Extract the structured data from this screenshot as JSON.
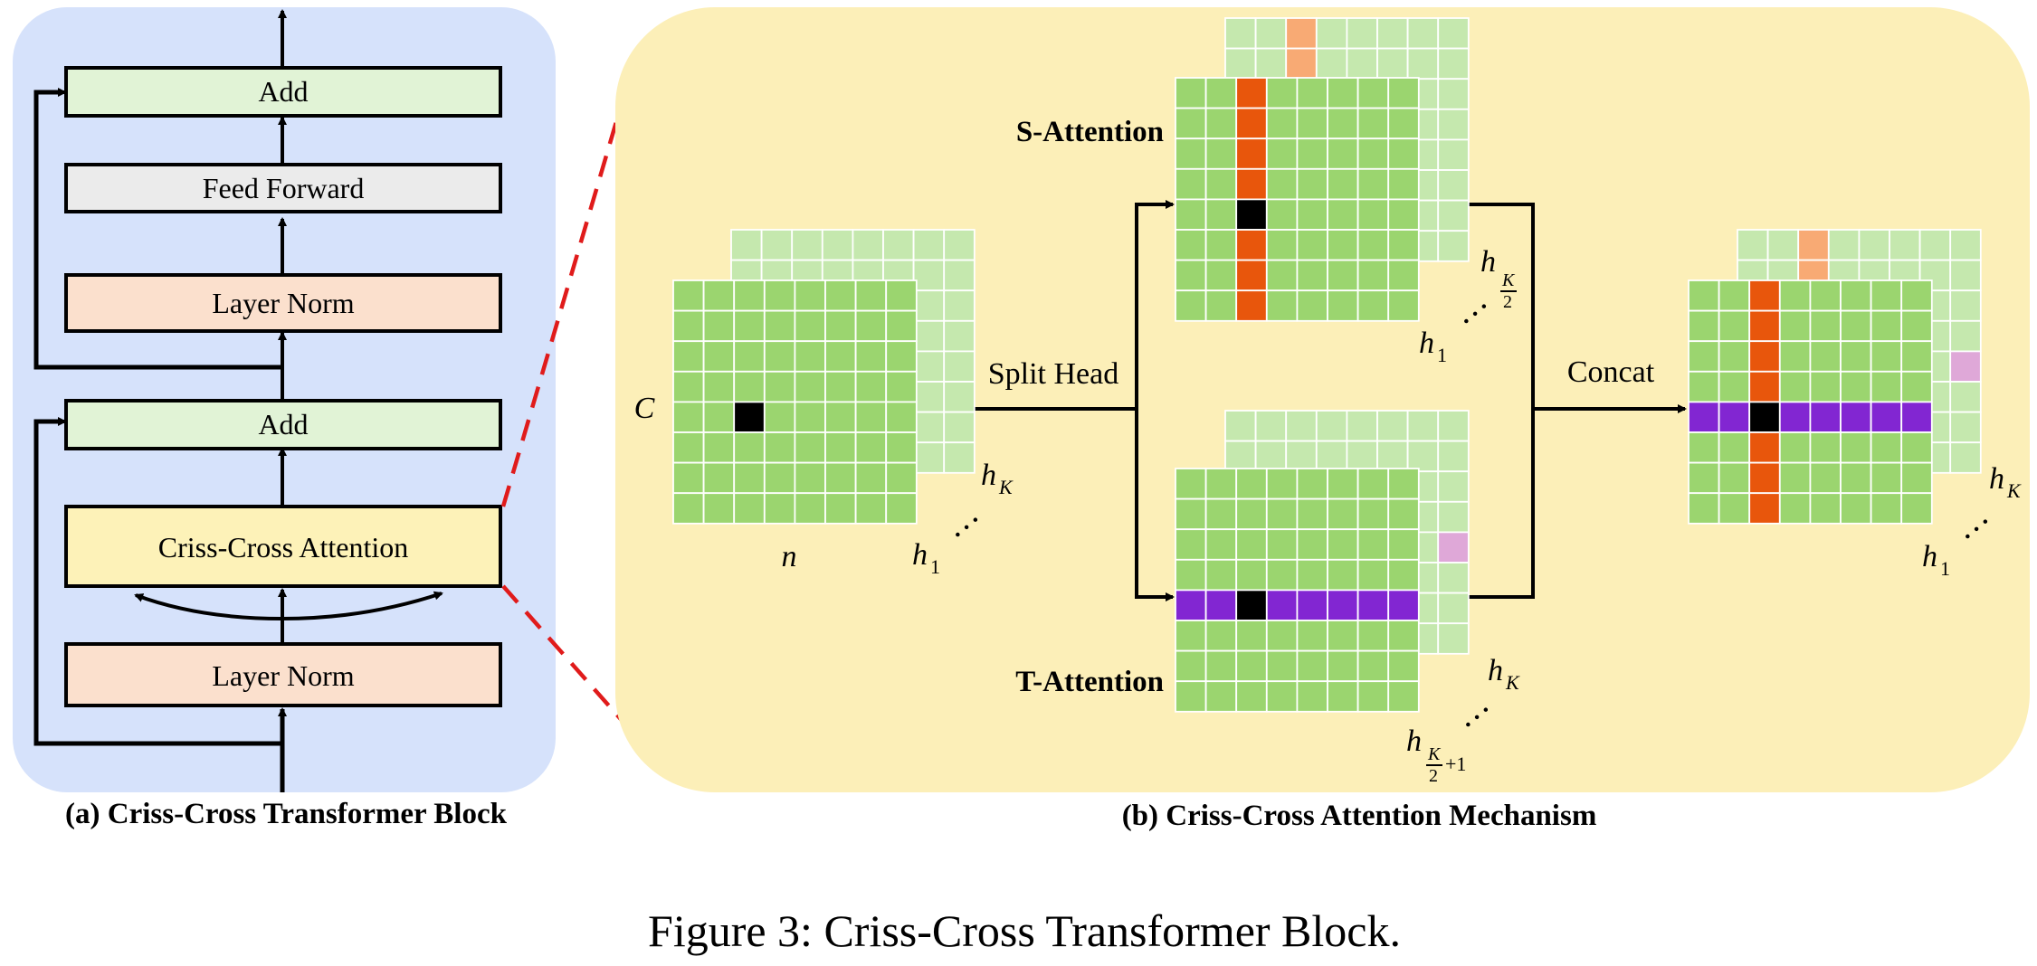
{
  "panel_a": {
    "blocks": {
      "add_top": "Add",
      "feed_forward": "Feed Forward",
      "layer_norm_top": "Layer Norm",
      "add_bottom": "Add",
      "criss_cross_attention": "Criss-Cross Attention",
      "layer_norm_bottom": "Layer Norm"
    },
    "caption": "(a) Criss-Cross Transformer Block"
  },
  "panel_b": {
    "labels": {
      "s_attention": "S-Attention",
      "t_attention": "T-Attention",
      "split_head": "Split Head",
      "concat": "Concat",
      "c": "C",
      "n": "n",
      "h": "h",
      "sub_1": "1",
      "sub_K": "K",
      "frac_K": "K",
      "frac_2": "2",
      "plus_1": "+1",
      "dots": "…"
    },
    "caption": "(b) Criss-Cross Attention Mechanism"
  },
  "figure_caption": "Figure 3: Criss-Cross Transformer Block.",
  "colors": {
    "panel_a_bg": "#d6e2fb",
    "panel_b_bg": "#fcefb8",
    "add_fill": "#e1f3d6",
    "feed_forward_fill": "#ebebeb",
    "layer_norm_fill": "#fbe0cd",
    "attention_fill": "#fdf2b8",
    "grid_green": "#9bd56f",
    "grid_light_green": "#c5e8ae",
    "orange": "#e8560c",
    "light_orange": "#f8aa74",
    "purple": "#8226d2",
    "light_purple": "#dfa8d8",
    "black_cell": "#000000",
    "dashed_red": "#e01b1b"
  }
}
